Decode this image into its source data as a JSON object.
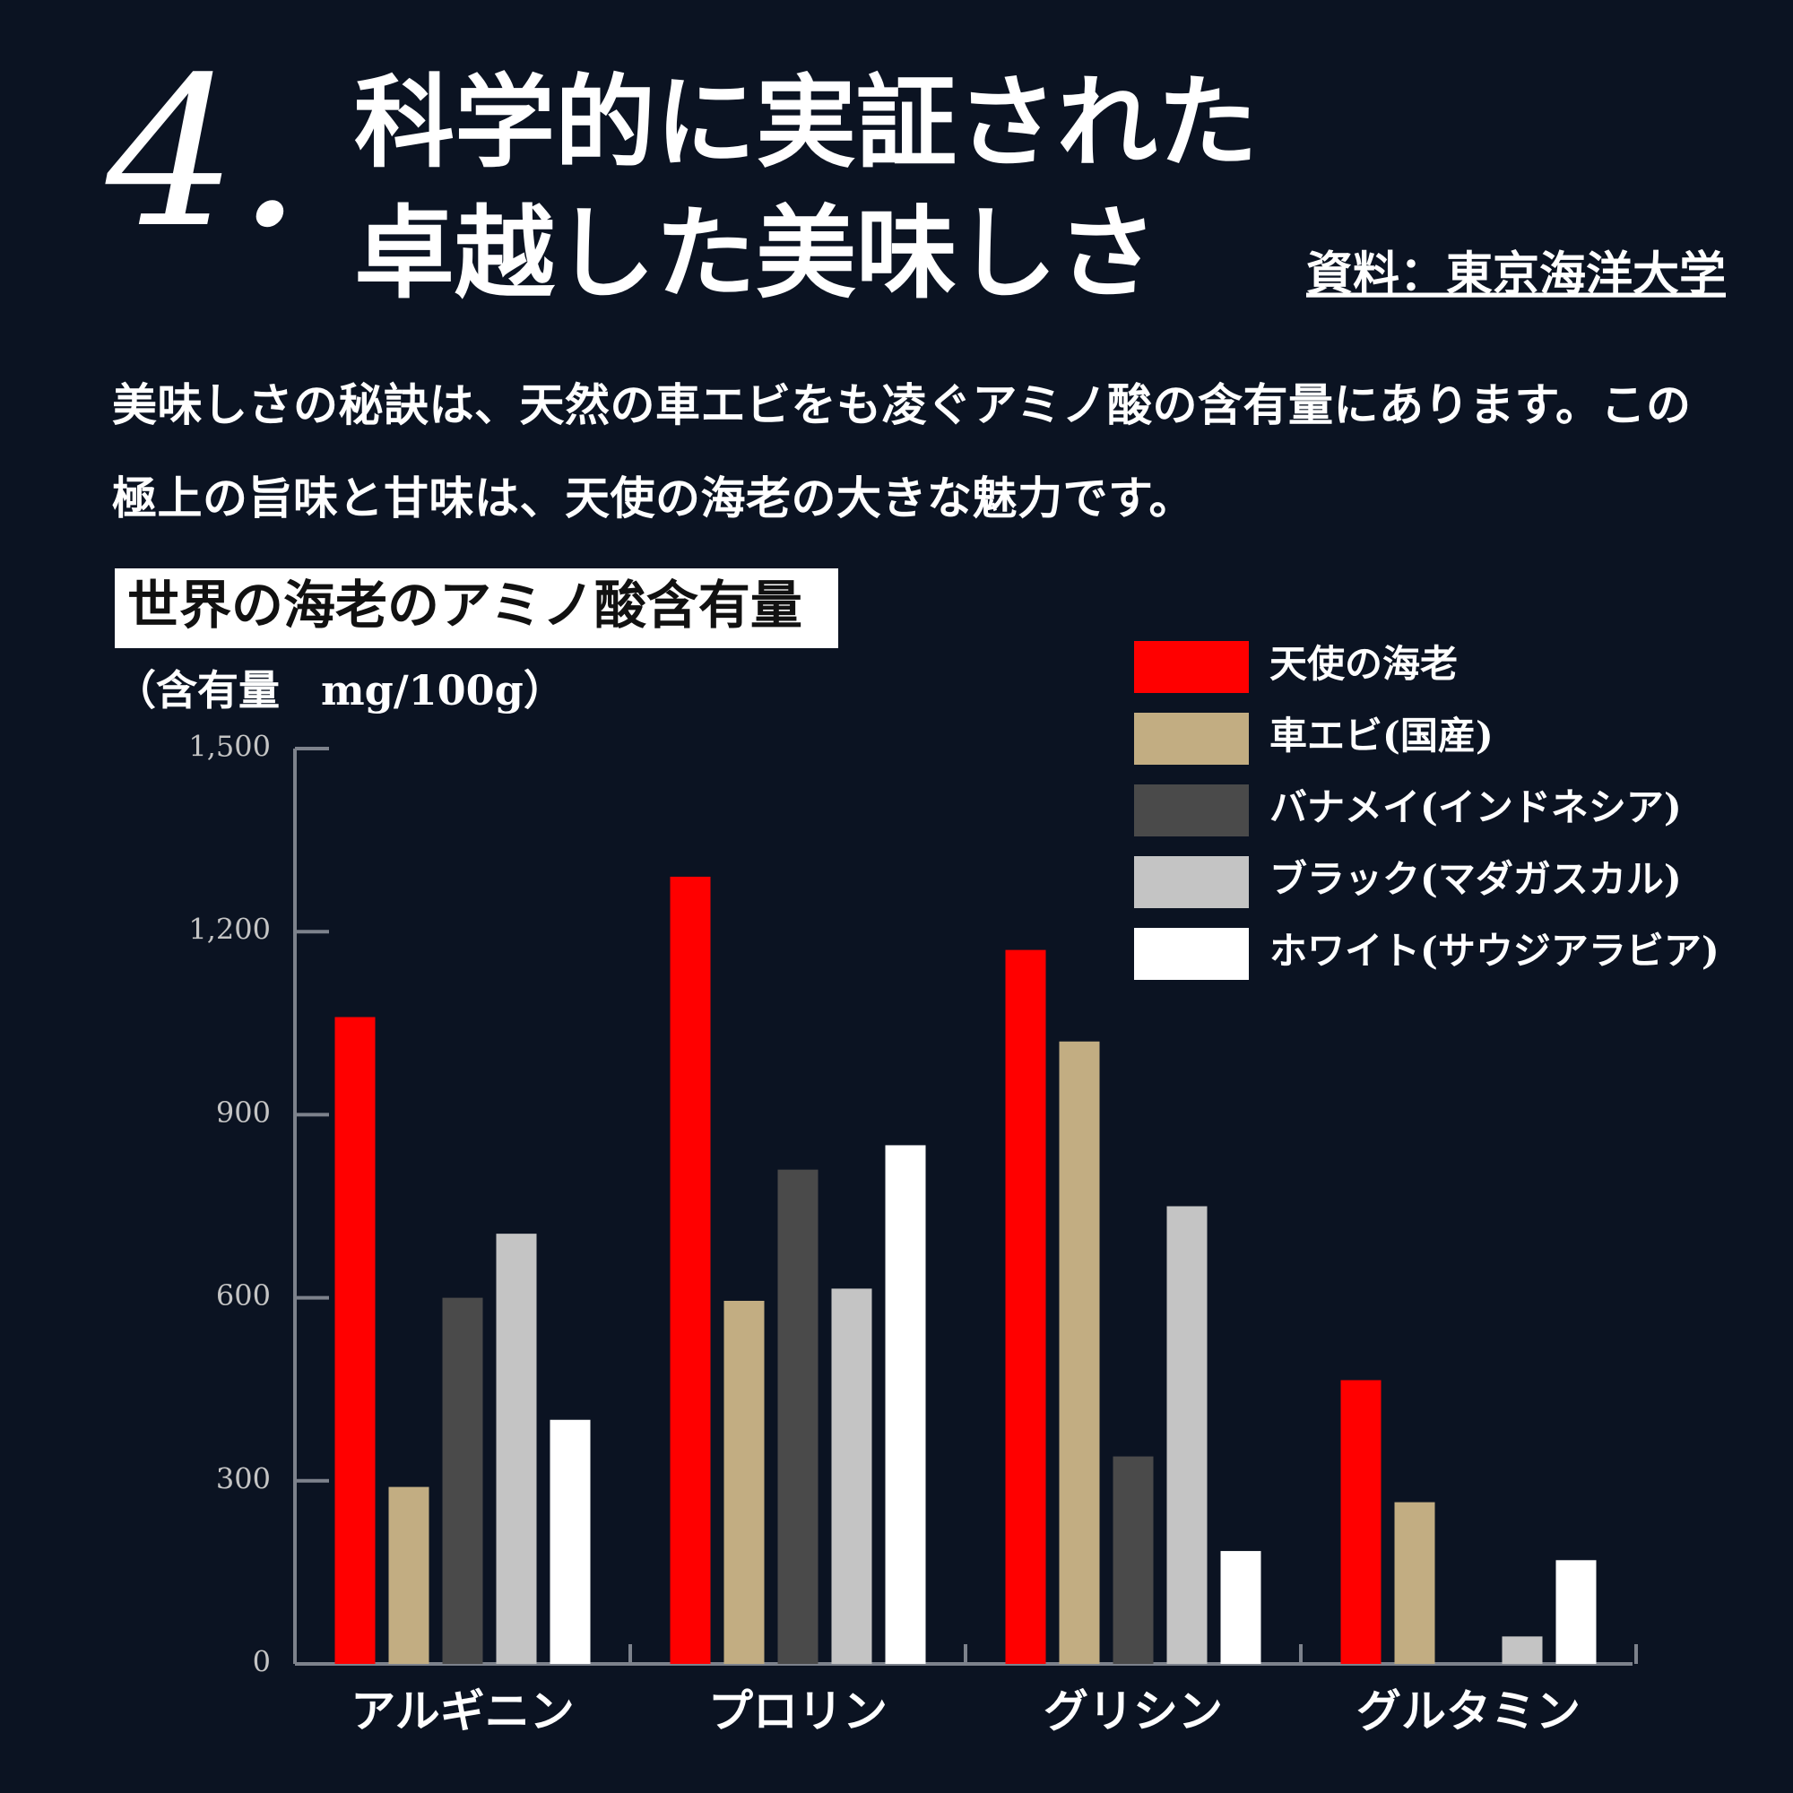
{
  "header": {
    "number": "4.",
    "title_lines": [
      "科学的に実証された",
      "卓越した美味しさ"
    ],
    "source": "資料：東京海洋大学"
  },
  "body": "美味しさの秘訣は、天然の車エビをも凌ぐアミノ酸の含有量にあります。この極上の旨味と甘味は、天使の海老の大きな魅力です。",
  "chart_data": {
    "type": "bar",
    "title": "世界の海老のアミノ酸含有量",
    "y_label": "（含有量　mg/100g）",
    "categories": [
      "アルギニン",
      "プロリン",
      "グリシン",
      "グルタミン"
    ],
    "series": [
      {
        "name": "天使の海老",
        "color": "#ff0000",
        "values": [
          1060,
          1290,
          1170,
          465
        ]
      },
      {
        "name": "車エビ(国産)",
        "color": "#c2ad82",
        "values": [
          290,
          595,
          1020,
          265
        ]
      },
      {
        "name": "バナメイ(インドネシア)",
        "color": "#4a4a4a",
        "values": [
          600,
          810,
          340,
          null
        ]
      },
      {
        "name": "ブラック(マダガスカル)",
        "color": "#c4c4c4",
        "values": [
          705,
          615,
          750,
          45
        ]
      },
      {
        "name": "ホワイト(サウジアラビア)",
        "color": "#ffffff",
        "values": [
          400,
          850,
          185,
          170
        ]
      }
    ],
    "ylim": [
      0,
      1500
    ],
    "yticks": [
      0,
      300,
      600,
      900,
      {
        "value": 1200,
        "label": "1,200"
      },
      {
        "value": 1500,
        "label": "1,500"
      }
    ],
    "grid": false,
    "legend": "top-right"
  }
}
